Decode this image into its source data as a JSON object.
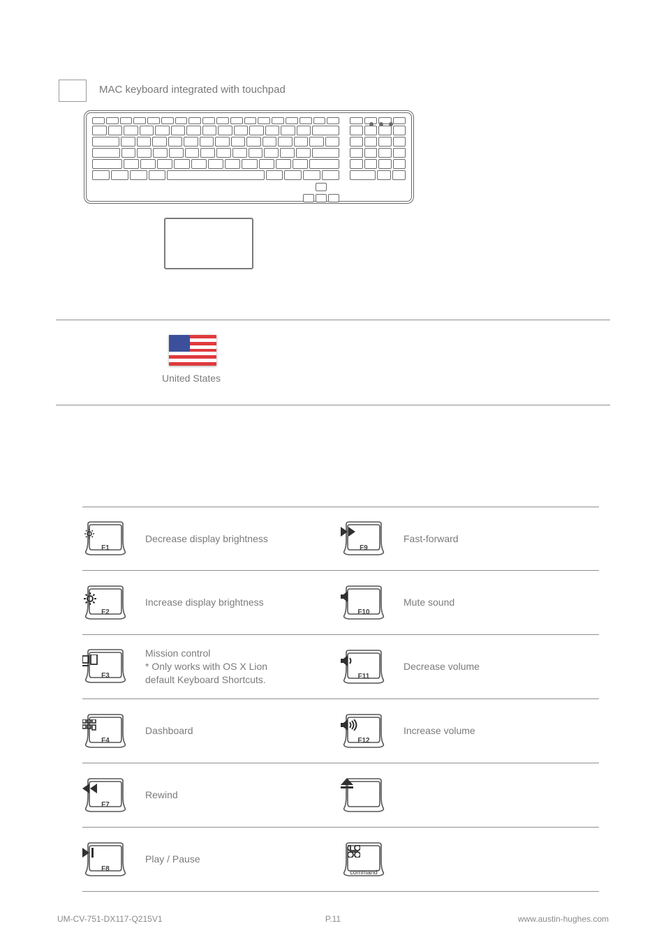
{
  "header": {
    "title": "MAC keyboard integrated with touchpad"
  },
  "country": {
    "label": "United States"
  },
  "keycap_colors": {
    "outline": "#555555",
    "label": "#333333",
    "icon": "#303030"
  },
  "fn_keys_left": [
    {
      "id": "f1",
      "label": "F1",
      "caption": "Decrease display brightness",
      "icon": "brightness-low"
    },
    {
      "id": "f2",
      "label": "F2",
      "caption": "Increase display brightness",
      "icon": "brightness-high"
    },
    {
      "id": "f3",
      "label": "F3",
      "caption": "Mission control\n* Only works with OS X Lion\n  default Keyboard Shortcuts.",
      "icon": "mission-control"
    },
    {
      "id": "f4",
      "label": "F4",
      "caption": "Dashboard",
      "icon": "dashboard"
    },
    {
      "id": "f7",
      "label": "F7",
      "caption": "Rewind",
      "icon": "rewind"
    },
    {
      "id": "f8",
      "label": "F8",
      "caption": "Play / Pause",
      "icon": "play-pause"
    }
  ],
  "fn_keys_right": [
    {
      "id": "f9",
      "label": "F9",
      "caption": "Fast-forward",
      "icon": "fast-forward"
    },
    {
      "id": "f10",
      "label": "F10",
      "caption": "Mute sound",
      "icon": "mute"
    },
    {
      "id": "f11",
      "label": "F11",
      "caption": "Decrease volume",
      "icon": "vol-down"
    },
    {
      "id": "f12",
      "label": "F12",
      "caption": "Increase volume",
      "icon": "vol-up"
    },
    {
      "id": "eject",
      "label": "",
      "caption": "",
      "icon": "eject"
    },
    {
      "id": "cmd",
      "label": "command",
      "caption": "",
      "icon": "command"
    }
  ],
  "keyboard": {
    "has_led_row": true,
    "led_count": 3,
    "rows": [
      {
        "type": "fn",
        "count": 18
      },
      {
        "type": "num",
        "count": 15,
        "wide_last": true
      },
      {
        "type": "qwe",
        "count": 15,
        "wide_first": true
      },
      {
        "type": "asd",
        "count": 14,
        "wide_first": true,
        "wide_last": true
      },
      {
        "type": "zxc",
        "count": 13,
        "wide_first": true,
        "wide_last": true
      },
      {
        "type": "mod",
        "count": 9
      }
    ]
  },
  "footer": {
    "left": "UM-CV-751-DX117-Q215V1",
    "center": "P.11",
    "right": "www.austin-hughes.com"
  }
}
